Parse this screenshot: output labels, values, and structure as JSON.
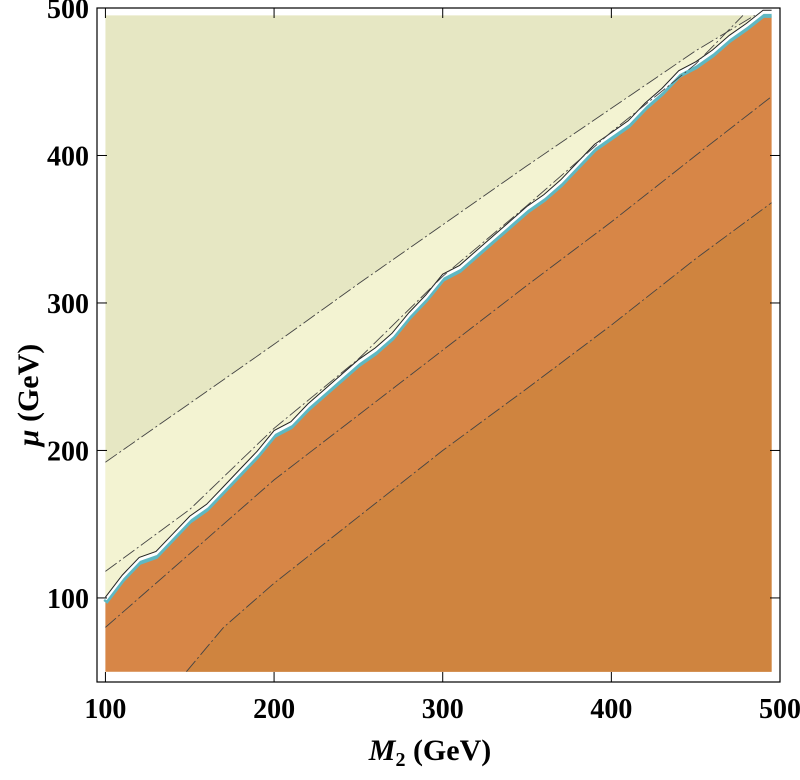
{
  "chart_data": {
    "type": "contour",
    "title": "",
    "xlabel_parts": {
      "main": "M",
      "sub": "2",
      "rest": " (GeV)"
    },
    "ylabel_parts": {
      "main": "μ",
      "rest": " (GeV)"
    },
    "xlim": [
      95,
      500
    ],
    "ylim": [
      43,
      500
    ],
    "data_xrange": [
      100,
      495
    ],
    "data_yrange": [
      50,
      495
    ],
    "x_ticks": [
      100,
      200,
      300,
      400,
      500
    ],
    "y_ticks": [
      100,
      200,
      300,
      400,
      500
    ],
    "colors": {
      "upper_far": "#e6e7c3",
      "upper_near": "#f3f3d2",
      "lower_near": "#d78647",
      "lower_far": "#cf843f",
      "boundary_teal": "#5fb8c2",
      "contour_line": "#444444"
    },
    "boundary": [
      [
        100,
        97
      ],
      [
        110,
        112
      ],
      [
        120,
        124
      ],
      [
        130,
        128
      ],
      [
        140,
        140
      ],
      [
        150,
        152
      ],
      [
        160,
        160
      ],
      [
        170,
        172
      ],
      [
        180,
        184
      ],
      [
        190,
        196
      ],
      [
        200,
        210
      ],
      [
        210,
        216
      ],
      [
        220,
        228
      ],
      [
        230,
        238
      ],
      [
        240,
        248
      ],
      [
        250,
        258
      ],
      [
        260,
        266
      ],
      [
        270,
        276
      ],
      [
        280,
        290
      ],
      [
        290,
        302
      ],
      [
        300,
        316
      ],
      [
        310,
        322
      ],
      [
        320,
        332
      ],
      [
        330,
        342
      ],
      [
        340,
        352
      ],
      [
        350,
        362
      ],
      [
        360,
        370
      ],
      [
        370,
        380
      ],
      [
        380,
        392
      ],
      [
        390,
        404
      ],
      [
        400,
        412
      ],
      [
        410,
        420
      ],
      [
        420,
        432
      ],
      [
        430,
        442
      ],
      [
        440,
        454
      ],
      [
        450,
        460
      ],
      [
        460,
        468
      ],
      [
        470,
        478
      ],
      [
        480,
        486
      ],
      [
        490,
        495
      ],
      [
        495,
        495
      ]
    ],
    "contour_upper_far": [
      [
        100,
        192
      ],
      [
        150,
        232
      ],
      [
        200,
        272
      ],
      [
        250,
        313
      ],
      [
        300,
        353
      ],
      [
        350,
        393
      ],
      [
        400,
        432
      ],
      [
        450,
        471
      ],
      [
        485,
        495
      ]
    ],
    "contour_upper_near": [
      [
        100,
        118
      ],
      [
        150,
        160
      ],
      [
        200,
        215
      ],
      [
        250,
        262
      ],
      [
        300,
        318
      ],
      [
        350,
        366
      ],
      [
        400,
        416
      ],
      [
        450,
        462
      ],
      [
        478,
        495
      ]
    ],
    "contour_lower_near": [
      [
        100,
        80
      ],
      [
        120,
        100
      ],
      [
        150,
        130
      ],
      [
        200,
        180
      ],
      [
        250,
        224
      ],
      [
        300,
        268
      ],
      [
        350,
        312
      ],
      [
        400,
        355
      ],
      [
        450,
        400
      ],
      [
        495,
        440
      ]
    ],
    "contour_lower_far": [
      [
        148,
        50
      ],
      [
        170,
        80
      ],
      [
        200,
        110
      ],
      [
        250,
        155
      ],
      [
        300,
        200
      ],
      [
        350,
        242
      ],
      [
        400,
        285
      ],
      [
        450,
        330
      ],
      [
        495,
        368
      ]
    ]
  }
}
